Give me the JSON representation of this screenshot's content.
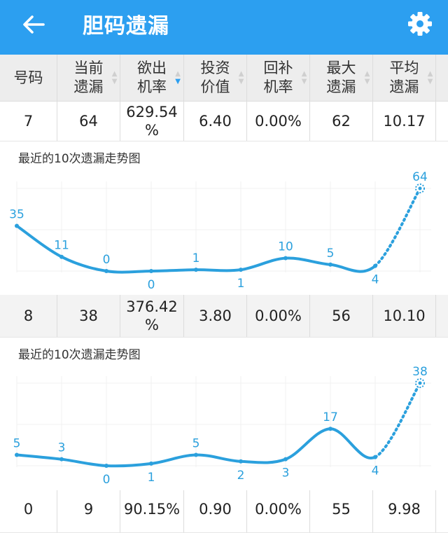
{
  "appbar": {
    "title": "胆码遗漏",
    "back_icon": "arrow-left-icon",
    "settings_icon": "gear-icon"
  },
  "columns": [
    {
      "l1": "号码",
      "l2": ""
    },
    {
      "l1": "当前",
      "l2": "遗漏"
    },
    {
      "l1": "欲出",
      "l2": "机率"
    },
    {
      "l1": "投资",
      "l2": "价值"
    },
    {
      "l1": "回补",
      "l2": "机率"
    },
    {
      "l1": "最大",
      "l2": "遗漏"
    },
    {
      "l1": "平均",
      "l2": "遗漏"
    }
  ],
  "rows": [
    {
      "num": "7",
      "cur": "64",
      "prob_a": "629.54",
      "prob_b": "%",
      "invest": "6.40",
      "rebound": "0.00%",
      "max": "62",
      "avg": "10.17"
    },
    {
      "num": "8",
      "cur": "38",
      "prob_a": "376.42",
      "prob_b": "%",
      "invest": "3.80",
      "rebound": "0.00%",
      "max": "56",
      "avg": "10.10"
    },
    {
      "num": "0",
      "cur": "9",
      "prob_a": "90.15%",
      "prob_b": "",
      "invest": "0.90",
      "rebound": "0.00%",
      "max": "55",
      "avg": "9.98"
    }
  ],
  "chart_data": [
    {
      "type": "line",
      "title": "最近的10次遗漏走势图",
      "values": [
        35,
        11,
        0,
        0,
        1,
        1,
        10,
        5,
        4,
        64
      ],
      "color": "#2ba0dd"
    },
    {
      "type": "line",
      "title": "最近的10次遗漏走势图",
      "values": [
        5,
        3,
        0,
        1,
        5,
        2,
        3,
        17,
        4,
        38
      ],
      "color": "#2ba0dd"
    }
  ]
}
